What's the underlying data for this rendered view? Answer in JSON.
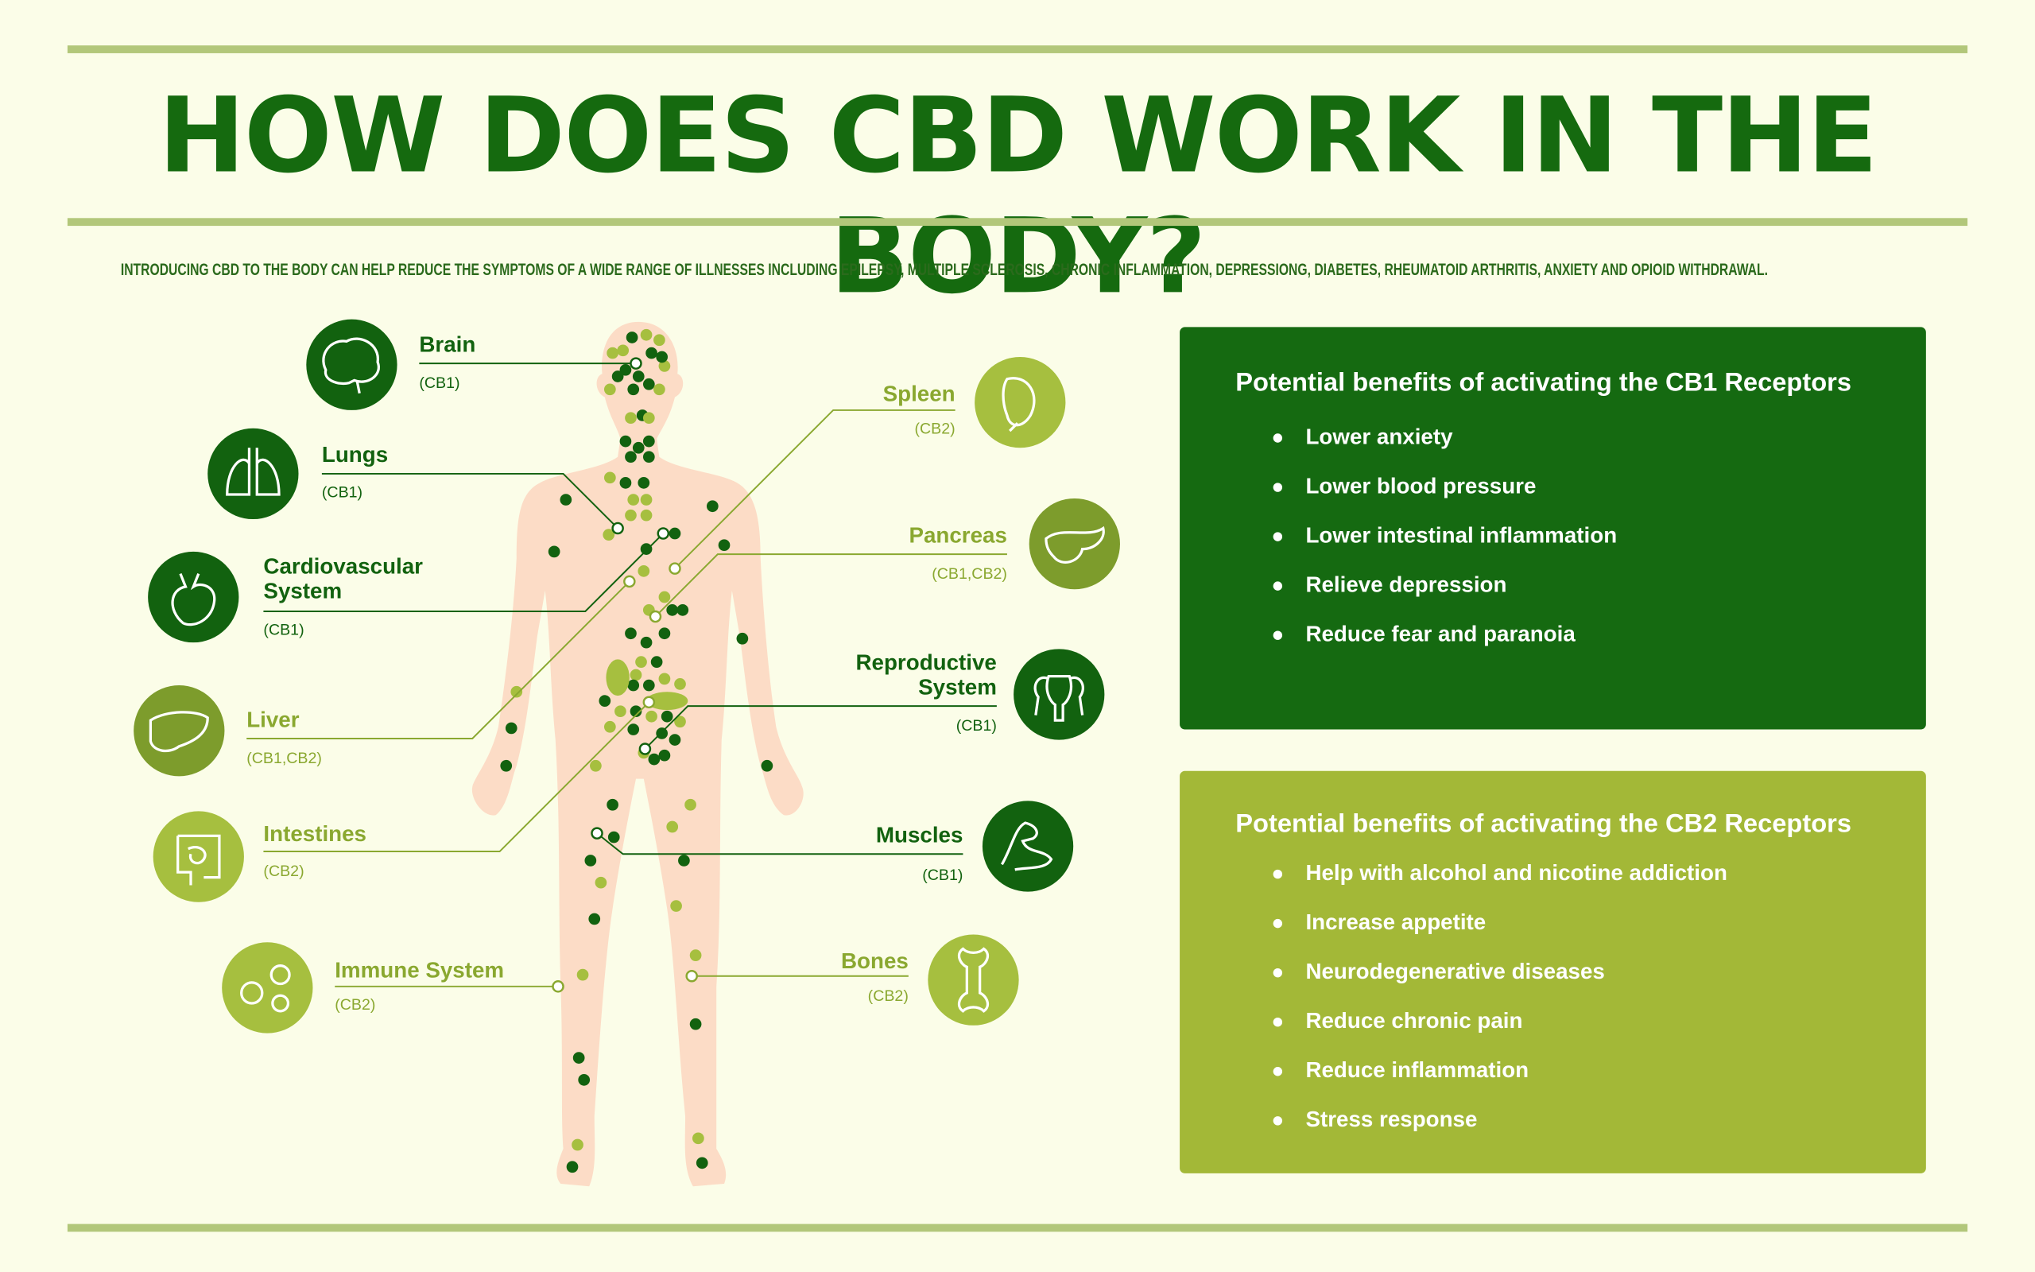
{
  "title": "HOW DOES CBD WORK IN THE BODY?",
  "subtitle": "INTRODUCING CBD TO THE BODY CAN HELP REDUCE THE SYMPTOMS OF A WIDE RANGE OF ILLNESSES INCLUDING EPILEPSY, MULTIPLE SCLEROSIS, CHRONIC INFLAMMATION, DEPRESSIONG, DIABETES, RHEUMATOID ARTHRITIS, ANXIETY AND OPIOID WITHDRAWAL.",
  "colors": {
    "dark_green": "#12620f",
    "medium_green": "#7d9c2c",
    "light_green": "#a6bf3f",
    "skin": "#fcdcc6",
    "background": "#fbfde8",
    "cb1_box": "#156a11",
    "cb2_box": "#a3b837"
  },
  "organs": [
    {
      "name": "Brain",
      "receptor": "(CB1)",
      "tone": "dark",
      "icon": "brain-icon"
    },
    {
      "name": "Lungs",
      "receptor": "(CB1)",
      "tone": "dark",
      "icon": "lungs-icon"
    },
    {
      "name": "Cardiovascular System",
      "receptor": "(CB1)",
      "tone": "dark",
      "icon": "heart-icon"
    },
    {
      "name": "Liver",
      "receptor": "(CB1,CB2)",
      "tone": "medium",
      "icon": "liver-icon"
    },
    {
      "name": "Intestines",
      "receptor": "(CB2)",
      "tone": "light",
      "icon": "intestines-icon"
    },
    {
      "name": "Immune System",
      "receptor": "(CB2)",
      "tone": "light",
      "icon": "cells-icon"
    },
    {
      "name": "Spleen",
      "receptor": "(CB2)",
      "tone": "light",
      "icon": "spleen-icon"
    },
    {
      "name": "Pancreas",
      "receptor": "(CB1,CB2)",
      "tone": "medium",
      "icon": "pancreas-icon"
    },
    {
      "name": "Reproductive System",
      "receptor": "(CB1)",
      "tone": "dark",
      "icon": "uterus-icon"
    },
    {
      "name": "Muscles",
      "receptor": "(CB1)",
      "tone": "dark",
      "icon": "muscle-arm-icon"
    },
    {
      "name": "Bones",
      "receptor": "(CB2)",
      "tone": "light",
      "icon": "bone-icon"
    }
  ],
  "cb1": {
    "title": "Potential benefits of activating the CB1 Receptors",
    "items": [
      "Lower anxiety",
      "Lower blood pressure",
      "Lower intestinal inflammation",
      "Relieve depression",
      "Reduce fear and paranoia"
    ]
  },
  "cb2": {
    "title": "Potential benefits of activating the CB2 Receptors",
    "items": [
      "Help with alcohol and nicotine addiction",
      "Increase appetite",
      "Neurodegenerative diseases",
      "Reduce chronic pain",
      "Reduce inflammation",
      "Stress response"
    ]
  }
}
